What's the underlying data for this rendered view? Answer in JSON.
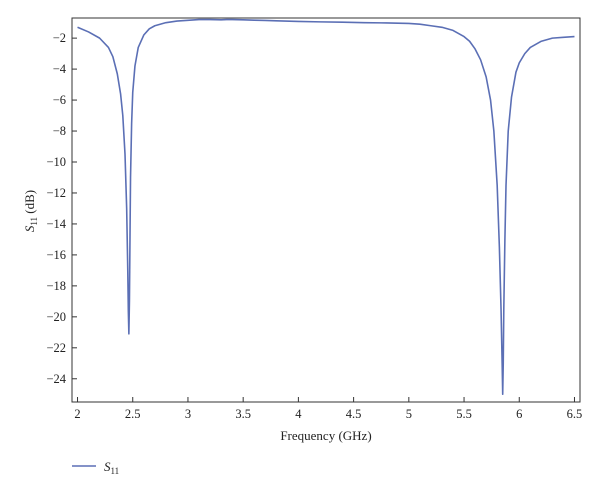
{
  "chart_data": {
    "type": "line",
    "xlabel": "Frequency (GHz)",
    "ylabel_main": "S",
    "ylabel_sub": "11",
    "ylabel_unit": " (dB)",
    "xlim": [
      1.95,
      6.55
    ],
    "ylim": [
      -25.5,
      -0.7
    ],
    "xticks": [
      2,
      2.5,
      3,
      3.5,
      4,
      4.5,
      5,
      5.5,
      6,
      6.5
    ],
    "xtick_labels": [
      "2",
      "2.5",
      "3",
      "3.5",
      "4",
      "4.5",
      "5",
      "5.5",
      "6",
      "6.5"
    ],
    "yticks": [
      -2,
      -4,
      -6,
      -8,
      -10,
      -12,
      -14,
      -16,
      -18,
      -20,
      -22,
      -24
    ],
    "ytick_labels": [
      "−2",
      "−4",
      "−6",
      "−8",
      "−10",
      "−12",
      "−14",
      "−16",
      "−18",
      "−20",
      "−22",
      "−24"
    ],
    "grid": false,
    "legend_position": "bottom-left",
    "line_color": "#5b6fb5",
    "series": [
      {
        "name_main": "S",
        "name_sub": "11",
        "x": [
          2.0,
          2.1,
          2.2,
          2.28,
          2.32,
          2.36,
          2.39,
          2.41,
          2.43,
          2.445,
          2.455,
          2.46,
          2.465,
          2.47,
          2.475,
          2.48,
          2.49,
          2.5,
          2.52,
          2.55,
          2.6,
          2.65,
          2.7,
          2.8,
          2.9,
          3.0,
          3.1,
          3.2,
          3.3,
          3.35,
          3.4,
          3.5,
          3.6,
          3.7,
          3.8,
          4.0,
          4.2,
          4.4,
          4.6,
          4.8,
          5.0,
          5.1,
          5.2,
          5.3,
          5.4,
          5.5,
          5.55,
          5.6,
          5.65,
          5.7,
          5.74,
          5.77,
          5.8,
          5.82,
          5.835,
          5.845,
          5.85,
          5.855,
          5.86,
          5.87,
          5.88,
          5.9,
          5.93,
          5.97,
          6.0,
          6.05,
          6.1,
          6.2,
          6.3,
          6.4,
          6.5
        ],
        "y": [
          -1.3,
          -1.6,
          -2.0,
          -2.6,
          -3.2,
          -4.3,
          -5.6,
          -7.0,
          -9.5,
          -13.0,
          -17.0,
          -19.6,
          -21.1,
          -19.0,
          -15.0,
          -11.0,
          -7.5,
          -5.5,
          -3.8,
          -2.6,
          -1.8,
          -1.4,
          -1.2,
          -1.0,
          -0.9,
          -0.85,
          -0.8,
          -0.8,
          -0.82,
          -0.8,
          -0.8,
          -0.82,
          -0.84,
          -0.86,
          -0.88,
          -0.92,
          -0.95,
          -0.97,
          -1.0,
          -1.02,
          -1.05,
          -1.1,
          -1.2,
          -1.3,
          -1.5,
          -1.9,
          -2.2,
          -2.7,
          -3.4,
          -4.5,
          -6.0,
          -8.0,
          -11.5,
          -15.5,
          -19.5,
          -23.0,
          -25.0,
          -23.0,
          -19.5,
          -15.0,
          -11.5,
          -8.0,
          -5.8,
          -4.2,
          -3.6,
          -3.0,
          -2.6,
          -2.2,
          -2.0,
          -1.95,
          -1.9
        ]
      }
    ]
  }
}
